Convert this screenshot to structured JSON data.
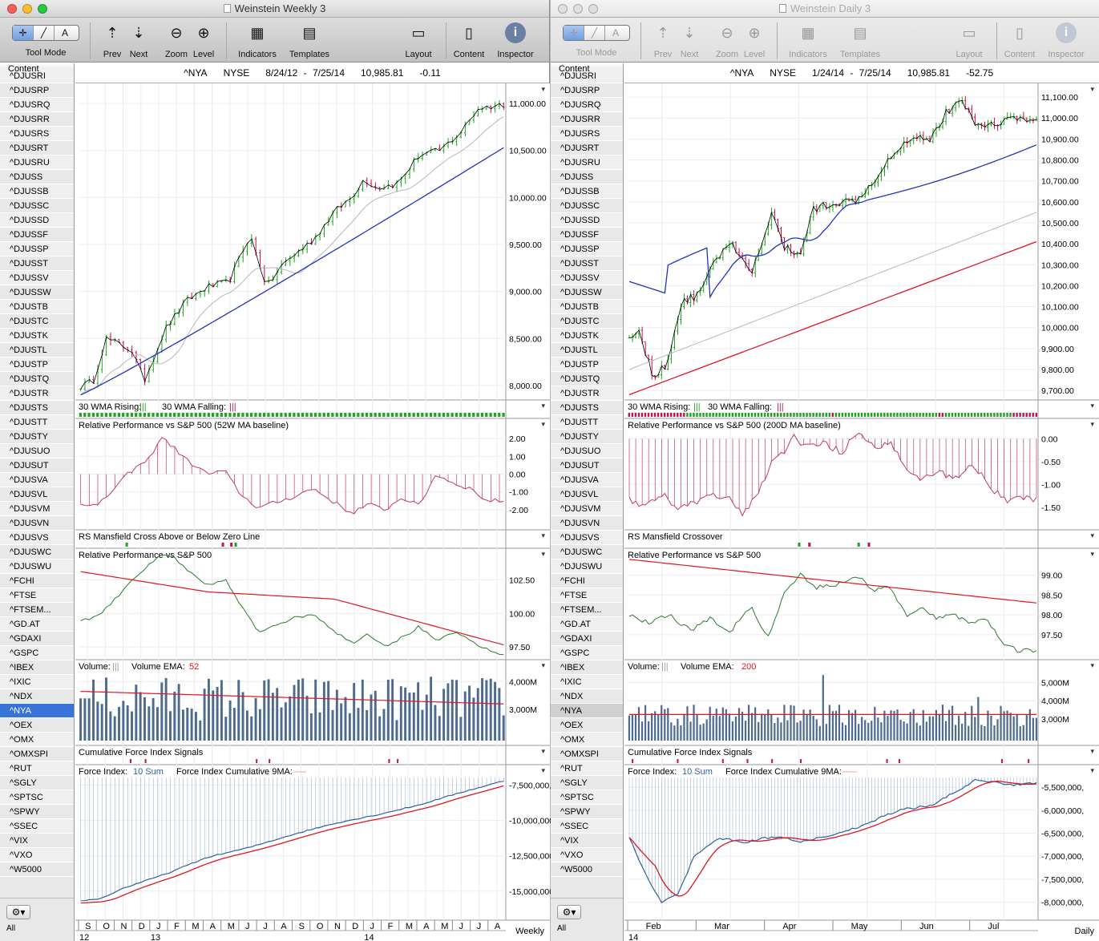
{
  "colors": {
    "up": "#1fa31f",
    "down": "#c0144a",
    "ma_blue": "#1f34b8",
    "ma_gray": "#b8b8b8",
    "ma_red": "#e0151f",
    "rel_bar": "#c0386a",
    "rel_line": "#2c7a2c",
    "vol_bar": "#4e6b8f",
    "force": "#2f5f9e",
    "selection": "#3874d8"
  },
  "toolbar": {
    "tool_mode": "Tool Mode",
    "prev": "Prev",
    "next": "Next",
    "zoom": "Zoom",
    "level": "Level",
    "indicators": "Indicators",
    "templates": "Templates",
    "layout": "Layout",
    "content": "Content",
    "inspector": "Inspector"
  },
  "sidebar": {
    "header": "Content",
    "all_label": "All",
    "items": [
      "^DJUSRI",
      "^DJUSRP",
      "^DJUSRQ",
      "^DJUSRR",
      "^DJUSRS",
      "^DJUSRT",
      "^DJUSRU",
      "^DJUSS",
      "^DJUSSB",
      "^DJUSSC",
      "^DJUSSD",
      "^DJUSSF",
      "^DJUSSP",
      "^DJUSST",
      "^DJUSSV",
      "^DJUSSW",
      "^DJUSTB",
      "^DJUSTC",
      "^DJUSTK",
      "^DJUSTL",
      "^DJUSTP",
      "^DJUSTQ",
      "^DJUSTR",
      "^DJUSTS",
      "^DJUSTT",
      "^DJUSTY",
      "^DJUSUO",
      "^DJUSUT",
      "^DJUSVA",
      "^DJUSVL",
      "^DJUSVM",
      "^DJUSVN",
      "^DJUSVS",
      "^DJUSWC",
      "^DJUSWU",
      "^FCHI",
      "^FTSE",
      "^FTSEM...",
      "^GD.AT",
      "^GDAXI",
      "^GSPC",
      "^IBEX",
      "^IXIC",
      "^NDX",
      "^NYA",
      "^OEX",
      "^OMX",
      "^OMXSPI",
      "^RUT",
      "^SGLY",
      "^SPTSC",
      "^SPWY",
      "^SSEC",
      "^VIX",
      "^VXO",
      "^W5000"
    ],
    "selected": "^NYA"
  },
  "windows": [
    {
      "title": "Weinstein Weekly 3",
      "header": {
        "symbol": "^NYA",
        "exchange": "NYSE",
        "range": "8/24/12 - 7/25/14",
        "price": "10,985.81",
        "change": "-0.11"
      },
      "period": "Weekly",
      "price_ticks": [
        "11,000.00",
        "10,500.00",
        "10,000.00",
        "9,500.00",
        "9,000.00",
        "8,500.00",
        "8,000.00"
      ],
      "price_range": [
        7880,
        11180
      ],
      "rising_label": "30 WMA Rising:",
      "falling_label": "30 WMA Falling:",
      "rel_title": "Relative Performance vs S&P 500 (52W MA baseline)",
      "rel_ticks": [
        "2.00",
        "1.00",
        "0.00",
        "-1.00",
        "-2.00"
      ],
      "rel_range": [
        -2.5,
        2.5
      ],
      "rs_title": "RS Mansfield Cross Above or Below Zero Line",
      "relsp_title": "Relative Performance vs S&P 500",
      "relsp_ticks": [
        "102.50",
        "100.00",
        "97.50"
      ],
      "relsp_range": [
        96.8,
        104.6
      ],
      "vol_label": "Volume:",
      "vol_ema_label": "Volume EMA:",
      "vol_ema_value": "52",
      "vol_ticks": [
        "4,000M",
        "3,000M"
      ],
      "vol_range": [
        2.0,
        4.5
      ],
      "cfi_title": "Cumulative Force Index Signals",
      "fi_label": "Force Index:",
      "fi_sum": "10 Sum",
      "fi_cum_label": "Force Index Cumulative 9MA:",
      "fi_ticks": [
        "-7,500,000,",
        "-10,000,000",
        "-12,500,000",
        "-15,000,000"
      ],
      "fi_range": [
        -16600000,
        -6500000
      ],
      "months": [
        "S",
        "O",
        "N",
        "D",
        "J",
        "F",
        "M",
        "A",
        "M",
        "J",
        "J",
        "A",
        "S",
        "O",
        "N",
        "D",
        "J",
        "F",
        "M",
        "A",
        "M",
        "J",
        "J",
        "A"
      ],
      "years": [
        "12",
        "13",
        "14"
      ]
    },
    {
      "title": "Weinstein Daily 3",
      "header": {
        "symbol": "^NYA",
        "exchange": "NYSE",
        "range": "1/24/14 - 7/25/14",
        "price": "10,985.81",
        "change": "-52.75"
      },
      "period": "Daily",
      "price_ticks": [
        "11,100.00",
        "11,000.00",
        "10,900.00",
        "10,800.00",
        "10,700.00",
        "10,600.00",
        "10,500.00",
        "10,400.00",
        "10,300.00",
        "10,200.00",
        "10,100.00",
        "10,000.00",
        "9,900.00",
        "9,800.00",
        "9,700.00"
      ],
      "price_range": [
        9670,
        11150
      ],
      "rising_label": "30 WMA Rising:",
      "falling_label": "30 WMA Falling:",
      "rel_title": "Relative Performance vs S&P 500 (200D MA baseline)",
      "rel_ticks": [
        "0.00",
        "-0.50",
        "-1.00",
        "-1.50"
      ],
      "rel_range": [
        -1.75,
        0.2
      ],
      "rs_title": "RS Mansfield Crossover",
      "relsp_title": "Relative Performance vs S&P 500",
      "relsp_ticks": [
        "99.00",
        "98.50",
        "98.00",
        "97.50"
      ],
      "relsp_range": [
        96.95,
        99.6
      ],
      "vol_label": "Volume:",
      "vol_ema_label": "Volume EMA:",
      "vol_ema_value": "200",
      "vol_ticks": [
        "5,000M",
        "4,000M",
        "3,000M"
      ],
      "vol_range": [
        2.0,
        5.8
      ],
      "cfi_title": "Cumulative Force Index Signals",
      "fi_label": "Force Index:",
      "fi_sum": "10 Sum",
      "fi_cum_label": "Force Index Cumulative 9MA:",
      "fi_ticks": [
        "-5,500,000,",
        "-6,000,000,",
        "-6,500,000,",
        "-7,000,000,",
        "-7,500,000,",
        "-8,000,000,"
      ],
      "fi_range": [
        -8250000,
        -5150000
      ],
      "months": [
        "Feb",
        "Mar",
        "Apr",
        "May",
        "Jun",
        "Jul"
      ],
      "years": [
        "14"
      ]
    }
  ]
}
